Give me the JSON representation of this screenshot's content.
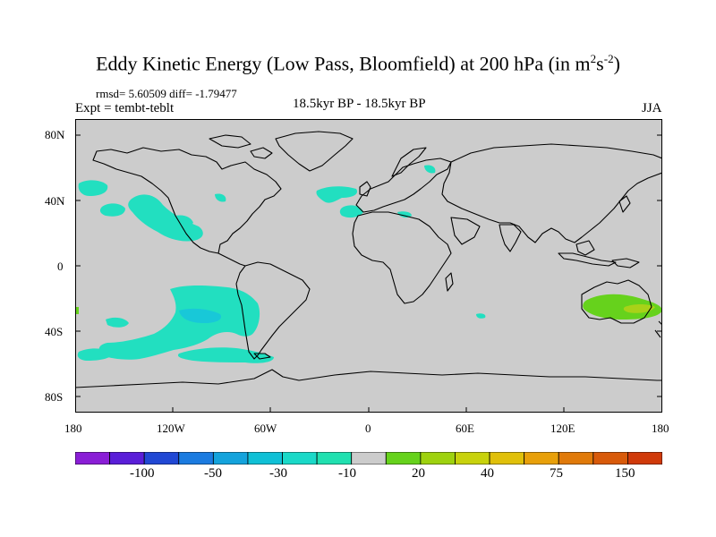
{
  "title": "Eddy Kinetic Energy (Low Pass, Bloomfield) at 200 hPa (in m",
  "units_m_exp": "2",
  "units_s": "s",
  "units_s_exp": "-2",
  "units_close": ")",
  "stats": "rmsd= 5.60509 diff= -1.79477",
  "expt": "Expt = tembt-teblt",
  "center_label": "18.5kyr BP - 18.5kyr BP",
  "season": "JJA",
  "lat_labels": [
    "80N",
    "40N",
    "0",
    "40S",
    "80S"
  ],
  "lon_labels": [
    "180",
    "120W",
    "60W",
    "0",
    "60E",
    "120E",
    "180"
  ],
  "colorbar": {
    "colors": [
      "#8a1ed6",
      "#5a1ed8",
      "#2148d4",
      "#1b7be0",
      "#14a3dc",
      "#0fc0d6",
      "#1ad9c8",
      "#20e0b0",
      "#cccccc",
      "#66d21c",
      "#9ed20f",
      "#c8d20c",
      "#e0c00a",
      "#e8a00a",
      "#e07a0a",
      "#d85a0a",
      "#d03a0a"
    ],
    "labels": [
      "-100",
      "-50",
      "-30",
      "-10",
      "20",
      "40",
      "75",
      "150"
    ]
  },
  "map": {
    "background_color": "#cccccc",
    "cyan_color": "#22dfc0",
    "blue_color": "#18c8d8",
    "green_color": "#66d21c",
    "yellow_color": "#a8d218"
  }
}
